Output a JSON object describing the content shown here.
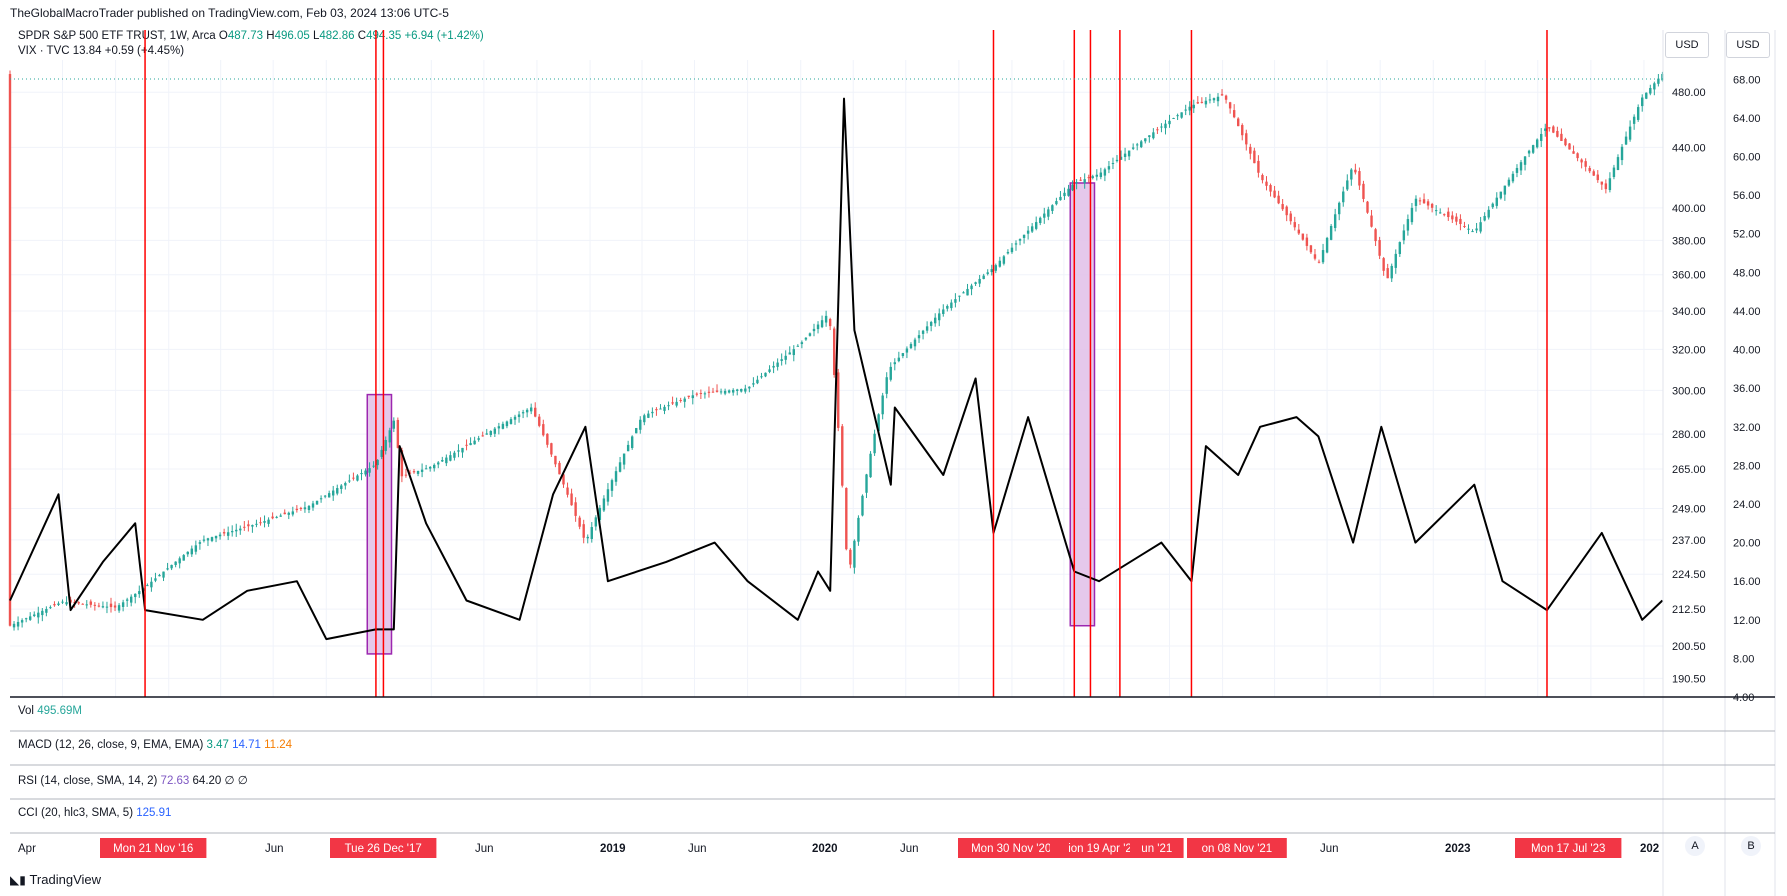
{
  "header": {
    "publisher_line": "TheGlobalMacroTrader published on TradingView.com, Feb 03, 2024 13:06 UTC-5"
  },
  "legend": {
    "spy": {
      "name": "SPDR S&P 500 ETF TRUST, 1W, Arca",
      "o_label": "O",
      "o": "487.73",
      "h_label": "H",
      "h": "496.05",
      "l_label": "L",
      "l": "482.86",
      "c_label": "C",
      "c": "494.35",
      "change": "+6.94 (+1.42%)"
    },
    "vix": {
      "name": "VIX · TVC",
      "value": "13.84",
      "change": "+0.59 (+4.45%)"
    }
  },
  "scale_buttons": [
    "USD",
    "USD"
  ],
  "panes": {
    "vol": {
      "label": "Vol",
      "value": "495.69M"
    },
    "macd": {
      "label": "MACD (12, 26, close, 9, EMA, EMA)",
      "v1": "3.47",
      "v2": "14.71",
      "v3": "11.24"
    },
    "rsi": {
      "label": "RSI (14, close, SMA, 14, 2)",
      "v1": "72.63",
      "v2": "64.20",
      "v3": "∅ ∅"
    },
    "cci": {
      "label": "CCI (20, hlc3, SMA, 5)",
      "v1": "125.91"
    }
  },
  "time_axis": {
    "labels": [
      {
        "text": "Apr",
        "type": "normal"
      },
      {
        "text": "Mon 21 Nov '16",
        "type": "marker"
      },
      {
        "text": "Jun",
        "type": "normal"
      },
      {
        "text": "Tue 26 Dec '17",
        "type": "marker"
      },
      {
        "text": "Jun",
        "type": "normal"
      },
      {
        "text": "2019",
        "type": "year"
      },
      {
        "text": "Jun",
        "type": "normal"
      },
      {
        "text": "2020",
        "type": "year"
      },
      {
        "text": "Jun",
        "type": "normal"
      },
      {
        "text": "Mon 30 Nov '20",
        "type": "marker"
      },
      {
        "text": "ion 19 Apr '21",
        "type": "marker"
      },
      {
        "text": "un '21",
        "type": "marker"
      },
      {
        "text": "on 08 Nov '21",
        "type": "marker"
      },
      {
        "text": "Jun",
        "type": "normal"
      },
      {
        "text": "2023",
        "type": "year"
      },
      {
        "text": "Mon 17 Jul '23",
        "type": "marker"
      },
      {
        "text": "202",
        "type": "year"
      }
    ],
    "buttons": [
      "A",
      "B"
    ]
  },
  "footer": {
    "brand": "TradingView"
  },
  "colors": {
    "up": "#26a69a",
    "down": "#ef5350",
    "vix_line": "#000000",
    "marker_line": "#ff0000",
    "highlight_fill": "#e1bee7",
    "highlight_stroke": "#9c27b0",
    "marker_label_bg": "#f23645"
  },
  "chart_data": {
    "type": "line",
    "title": "",
    "left_axis": {
      "series": "SPY",
      "ticks": [
        "190.50",
        "200.50",
        "212.50",
        "224.50",
        "237.00",
        "249.00",
        "265.00",
        "280.00",
        "300.00",
        "320.00",
        "340.00",
        "360.00",
        "380.00",
        "400.00",
        "440.00",
        "480.00"
      ]
    },
    "right_axis": {
      "series": "VIX",
      "ticks": [
        "4.00",
        "8.00",
        "12.00",
        "16.00",
        "20.00",
        "24.00",
        "28.00",
        "32.00",
        "36.00",
        "40.00",
        "44.00",
        "48.00",
        "52.00",
        "56.00",
        "60.00",
        "64.00",
        "68.00"
      ]
    },
    "x_range": [
      "2016-04-01",
      "2024-02-03"
    ],
    "series": [
      {
        "name": "SPDR S&P 500 ETF TRUST, 1W, Arca",
        "type": "candlestick",
        "points": [
          [
            "2016-04-01",
            207
          ],
          [
            "2016-07-01",
            215
          ],
          [
            "2016-10-01",
            213
          ],
          [
            "2016-11-21",
            220
          ],
          [
            "2017-03-01",
            237
          ],
          [
            "2017-06-01",
            243
          ],
          [
            "2017-09-01",
            250
          ],
          [
            "2017-12-26",
            267
          ],
          [
            "2018-01-26",
            286
          ],
          [
            "2018-02-09",
            262
          ],
          [
            "2018-04-01",
            266
          ],
          [
            "2018-06-01",
            275
          ],
          [
            "2018-09-21",
            292
          ],
          [
            "2018-12-24",
            236
          ],
          [
            "2019-04-01",
            288
          ],
          [
            "2019-07-01",
            298
          ],
          [
            "2019-10-01",
            301
          ],
          [
            "2020-01-01",
            323
          ],
          [
            "2020-02-19",
            339
          ],
          [
            "2020-03-23",
            223
          ],
          [
            "2020-06-01",
            310
          ],
          [
            "2020-09-01",
            340
          ],
          [
            "2020-11-30",
            364
          ],
          [
            "2021-02-01",
            387
          ],
          [
            "2021-04-19",
            416
          ],
          [
            "2021-06-01",
            422
          ],
          [
            "2021-09-01",
            450
          ],
          [
            "2021-11-08",
            470
          ],
          [
            "2022-01-03",
            478
          ],
          [
            "2022-03-07",
            420
          ],
          [
            "2022-06-16",
            366
          ],
          [
            "2022-08-15",
            428
          ],
          [
            "2022-10-12",
            356
          ],
          [
            "2022-12-01",
            406
          ],
          [
            "2023-03-13",
            385
          ],
          [
            "2023-05-01",
            412
          ],
          [
            "2023-07-17",
            455
          ],
          [
            "2023-10-27",
            412
          ],
          [
            "2023-12-29",
            476
          ],
          [
            "2024-02-02",
            494
          ]
        ]
      },
      {
        "name": "VIX · TVC",
        "type": "line",
        "points": [
          [
            "2016-04-01",
            14
          ],
          [
            "2016-06-24",
            25
          ],
          [
            "2016-07-15",
            13
          ],
          [
            "2016-09-09",
            18
          ],
          [
            "2016-11-04",
            22
          ],
          [
            "2016-11-21",
            13
          ],
          [
            "2017-03-01",
            12
          ],
          [
            "2017-05-17",
            15
          ],
          [
            "2017-08-11",
            16
          ],
          [
            "2017-10-01",
            10
          ],
          [
            "2017-12-26",
            11
          ],
          [
            "2018-01-26",
            11
          ],
          [
            "2018-02-05",
            30
          ],
          [
            "2018-03-23",
            22
          ],
          [
            "2018-06-01",
            14
          ],
          [
            "2018-09-01",
            12
          ],
          [
            "2018-10-29",
            25
          ],
          [
            "2018-12-24",
            32
          ],
          [
            "2019-02-01",
            16
          ],
          [
            "2019-05-13",
            18
          ],
          [
            "2019-08-05",
            20
          ],
          [
            "2019-10-01",
            16
          ],
          [
            "2019-12-27",
            12
          ],
          [
            "2020-01-31",
            17
          ],
          [
            "2020-02-21",
            15
          ],
          [
            "2020-03-16",
            66
          ],
          [
            "2020-04-03",
            42
          ],
          [
            "2020-06-05",
            26
          ],
          [
            "2020-06-12",
            34
          ],
          [
            "2020-09-04",
            27
          ],
          [
            "2020-10-30",
            37
          ],
          [
            "2020-11-30",
            21
          ],
          [
            "2021-01-29",
            33
          ],
          [
            "2021-03-05",
            26
          ],
          [
            "2021-04-19",
            17
          ],
          [
            "2021-06-01",
            16
          ],
          [
            "2021-09-17",
            20
          ],
          [
            "2021-11-08",
            16
          ],
          [
            "2021-12-03",
            30
          ],
          [
            "2022-01-28",
            27
          ],
          [
            "2022-03-07",
            32
          ],
          [
            "2022-05-09",
            33
          ],
          [
            "2022-06-16",
            31
          ],
          [
            "2022-08-15",
            20
          ],
          [
            "2022-10-03",
            32
          ],
          [
            "2022-12-01",
            20
          ],
          [
            "2023-03-13",
            26
          ],
          [
            "2023-05-01",
            16
          ],
          [
            "2023-07-17",
            13
          ],
          [
            "2023-10-20",
            21
          ],
          [
            "2023-12-29",
            12
          ],
          [
            "2024-02-02",
            14
          ]
        ]
      }
    ],
    "vertical_markers": [
      "2016-11-21",
      "2017-12-26",
      "2018-01-08",
      "2020-11-30",
      "2021-04-19",
      "2021-05-17",
      "2021-07-07",
      "2021-11-08",
      "2023-07-17"
    ],
    "highlight_ranges": [
      {
        "start": "2017-12-11",
        "end": "2018-01-22",
        "low": 198,
        "high": 298
      },
      {
        "start": "2021-04-12",
        "end": "2021-05-24",
        "low": 207,
        "high": 416
      }
    ]
  }
}
